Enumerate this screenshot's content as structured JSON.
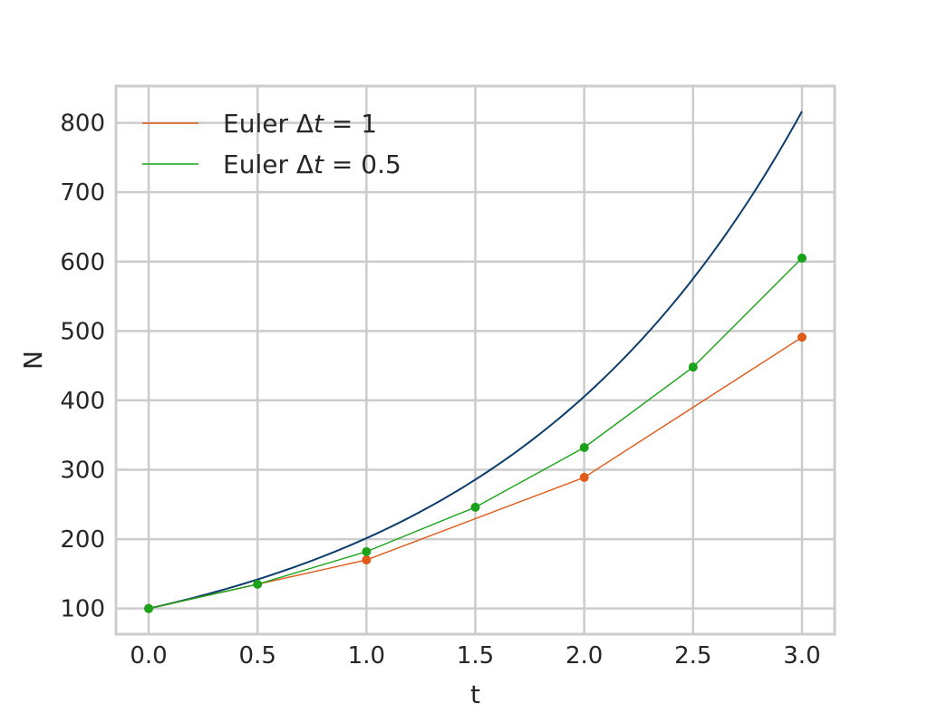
{
  "chart_data": {
    "type": "line",
    "xlabel": "t",
    "ylabel": "N",
    "xlim": [
      -0.15,
      3.15
    ],
    "ylim": [
      63,
      853
    ],
    "x_ticks": [
      0.0,
      0.5,
      1.0,
      1.5,
      2.0,
      2.5,
      3.0
    ],
    "x_tick_labels": [
      "0.0",
      "0.5",
      "1.0",
      "1.5",
      "2.0",
      "2.5",
      "3.0"
    ],
    "y_ticks": [
      100,
      200,
      300,
      400,
      500,
      600,
      700,
      800
    ],
    "y_tick_labels": [
      "100",
      "200",
      "300",
      "400",
      "500",
      "600",
      "700",
      "800"
    ],
    "grid": true,
    "legend_position": "top-left",
    "exact_curve": {
      "color": "#0b3c6b",
      "x_range": [
        0,
        3
      ],
      "function": "N = 100 * exp(0.7 * t)"
    },
    "series": [
      {
        "label_prefix": "Euler ",
        "label_delta": "Δ",
        "label_var": "t",
        "label_suffix": " = 1",
        "color": "#e05a1a",
        "x": [
          0,
          1,
          2,
          3
        ],
        "y": [
          100,
          170,
          289,
          491
        ]
      },
      {
        "label_prefix": "Euler ",
        "label_delta": "Δ",
        "label_var": "t",
        "label_suffix": " = 0.5",
        "color": "#1aa31a",
        "x": [
          0,
          0.5,
          1.0,
          1.5,
          2.0,
          2.5,
          3.0
        ],
        "y": [
          100,
          135,
          182,
          246,
          332,
          448,
          605
        ]
      }
    ]
  }
}
